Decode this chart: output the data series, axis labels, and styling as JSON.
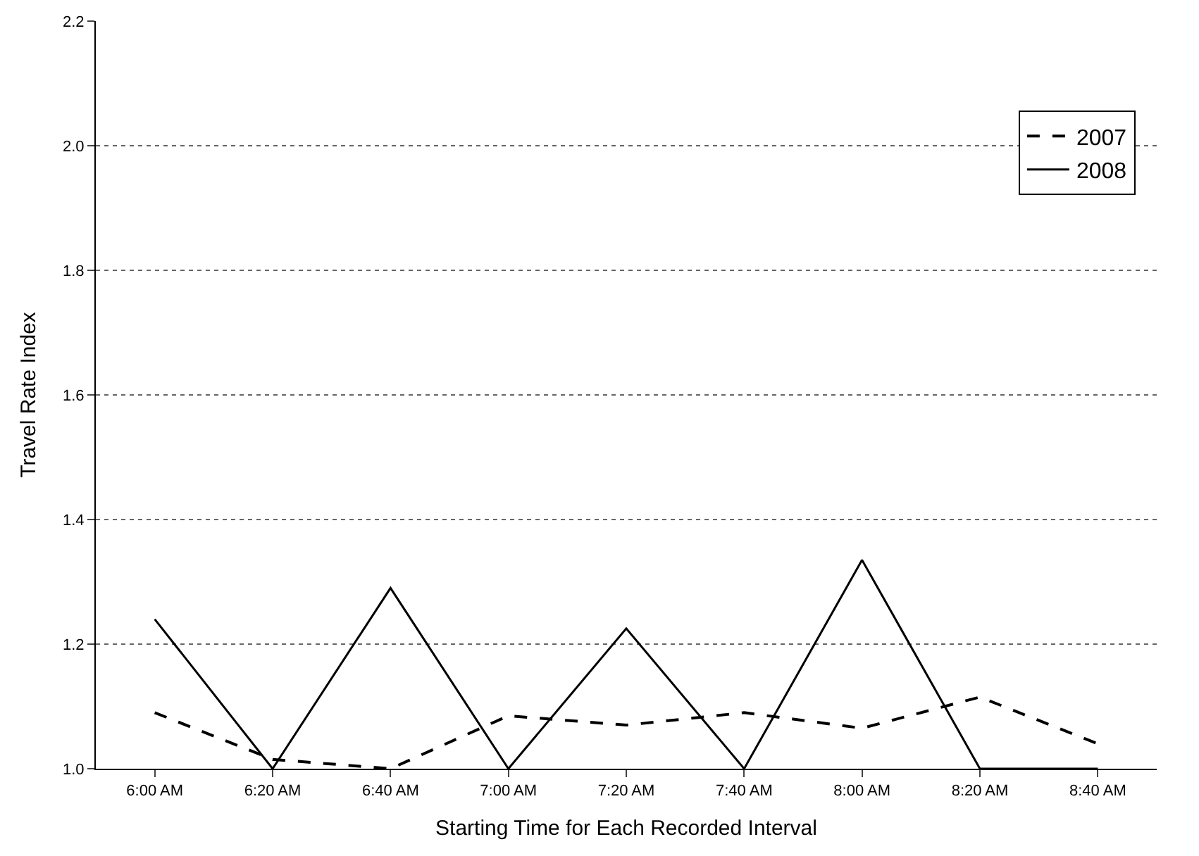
{
  "chart_data": {
    "type": "line",
    "xlabel": "Starting Time for Each Recorded Interval",
    "ylabel": "Travel Rate Index",
    "categories": [
      "6:00 AM",
      "6:20 AM",
      "6:40 AM",
      "7:00 AM",
      "7:20 AM",
      "7:40 AM",
      "8:00 AM",
      "8:20 AM",
      "8:40 AM"
    ],
    "series": [
      {
        "name": "2007",
        "color": "#000000",
        "line_style": "dashed",
        "values": [
          1.09,
          1.015,
          1.0,
          1.085,
          1.07,
          1.09,
          1.065,
          1.115,
          1.04
        ]
      },
      {
        "name": "2008",
        "color": "#000000",
        "line_style": "solid",
        "values": [
          1.24,
          1.0,
          1.29,
          1.0,
          1.225,
          1.0,
          1.335,
          1.0,
          1.0
        ]
      }
    ],
    "ylim": [
      1.0,
      2.2
    ],
    "yticks": [
      {
        "value": 1.0,
        "label": "1.0"
      },
      {
        "value": 1.2,
        "label": "1.2"
      },
      {
        "value": 1.4,
        "label": "1.4"
      },
      {
        "value": 1.6,
        "label": "1.6"
      },
      {
        "value": 1.8,
        "label": "1.8"
      },
      {
        "value": 2.0,
        "label": "2.0"
      },
      {
        "value": 2.2,
        "label": "2.2"
      }
    ],
    "grid": "y",
    "legend": "top right",
    "marker": "none"
  }
}
